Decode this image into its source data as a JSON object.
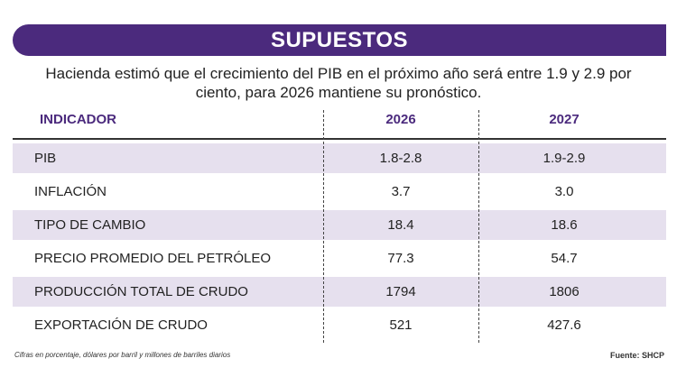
{
  "header": {
    "title": "SUPUESTOS",
    "subtitle": "Hacienda estimó que el crecimiento del PIB en el próximo año será entre 1.9 y 2.9 por ciento, para 2026 mantiene su pronóstico."
  },
  "table": {
    "columns": [
      "INDICADOR",
      "2026",
      "2027"
    ],
    "rows": [
      [
        "PIB",
        "1.8-2.8",
        "1.9-2.9"
      ],
      [
        "INFLACIÓN",
        "3.7",
        "3.0"
      ],
      [
        "TIPO DE CAMBIO",
        "18.4",
        "18.6"
      ],
      [
        "PRECIO PROMEDIO DEL PETRÓLEO",
        "77.3",
        "54.7"
      ],
      [
        "PRODUCCIÓN TOTAL DE CRUDO",
        "1794",
        "1806"
      ],
      [
        "EXPORTACIÓN DE CRUDO",
        "521",
        "427.6"
      ]
    ]
  },
  "footer": {
    "note": "Cifras en porcentaje, dólares por barril y millones de barriles diarios",
    "source": "Fuente: SHCP"
  }
}
